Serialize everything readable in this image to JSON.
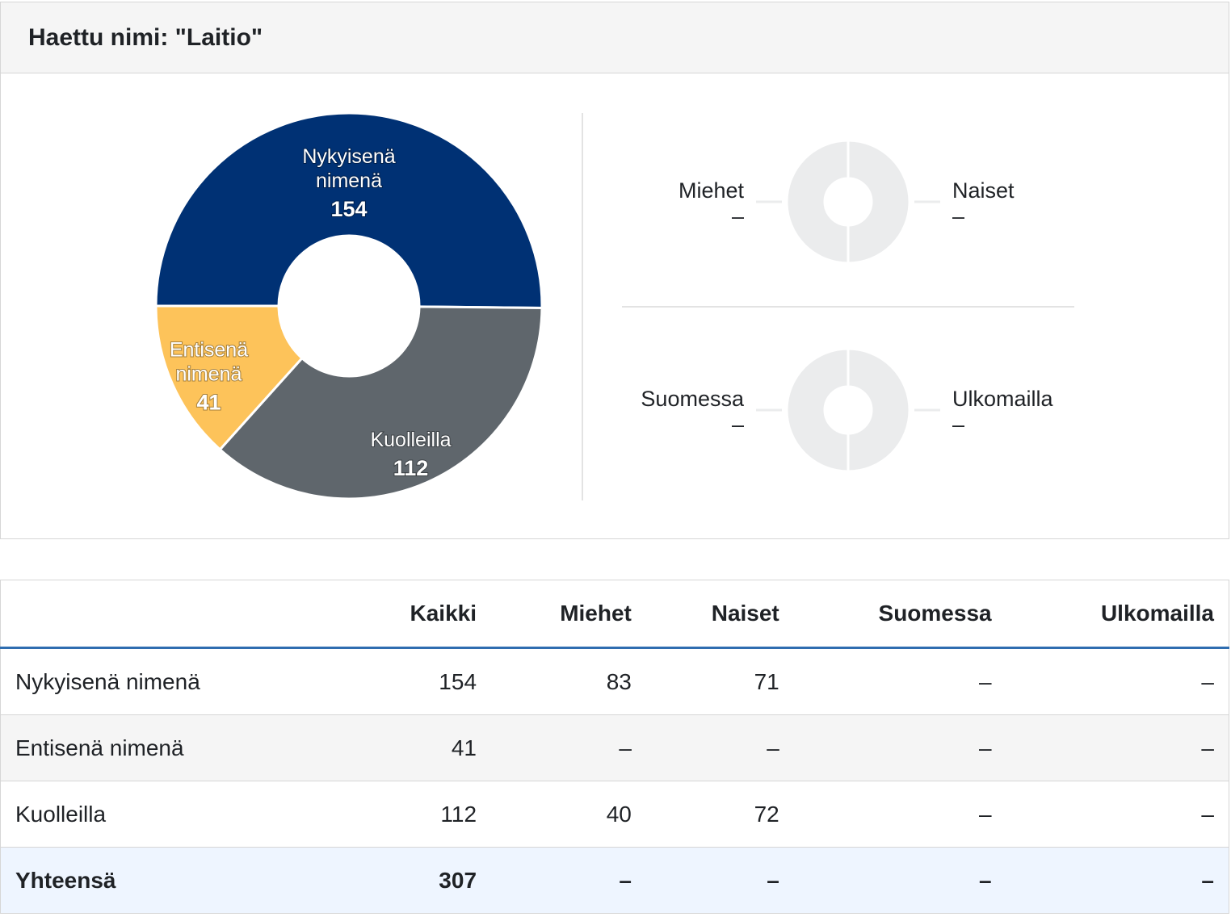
{
  "header": {
    "title": "Haettu nimi: \"Laitio\""
  },
  "chart_data": [
    {
      "type": "pie",
      "variant": "donut",
      "slices": [
        {
          "label": "Nykyisenä nimenä",
          "value": 154,
          "color": "#003174"
        },
        {
          "label": "Kuolleilla",
          "value": 112,
          "color": "#5f666c"
        },
        {
          "label": "Entisenä nimenä",
          "value": 41,
          "color": "#fdc35a"
        }
      ]
    },
    {
      "type": "pie",
      "variant": "donut",
      "slices": [
        {
          "label": "Miehet",
          "value_text": "–"
        },
        {
          "label": "Naiset",
          "value_text": "–"
        }
      ]
    },
    {
      "type": "pie",
      "variant": "donut",
      "slices": [
        {
          "label": "Suomessa",
          "value_text": "–"
        },
        {
          "label": "Ulkomailla",
          "value_text": "–"
        }
      ]
    }
  ],
  "table": {
    "columns": [
      "",
      "Kaikki",
      "Miehet",
      "Naiset",
      "Suomessa",
      "Ulkomailla"
    ],
    "rows": [
      [
        "Nykyisenä nimenä",
        "154",
        "83",
        "71",
        "–",
        "–"
      ],
      [
        "Entisenä nimenä",
        "41",
        "–",
        "–",
        "–",
        "–"
      ],
      [
        "Kuolleilla",
        "112",
        "40",
        "72",
        "–",
        "–"
      ],
      [
        "Yhteensä",
        "307",
        "–",
        "–",
        "–",
        "–"
      ]
    ]
  }
}
